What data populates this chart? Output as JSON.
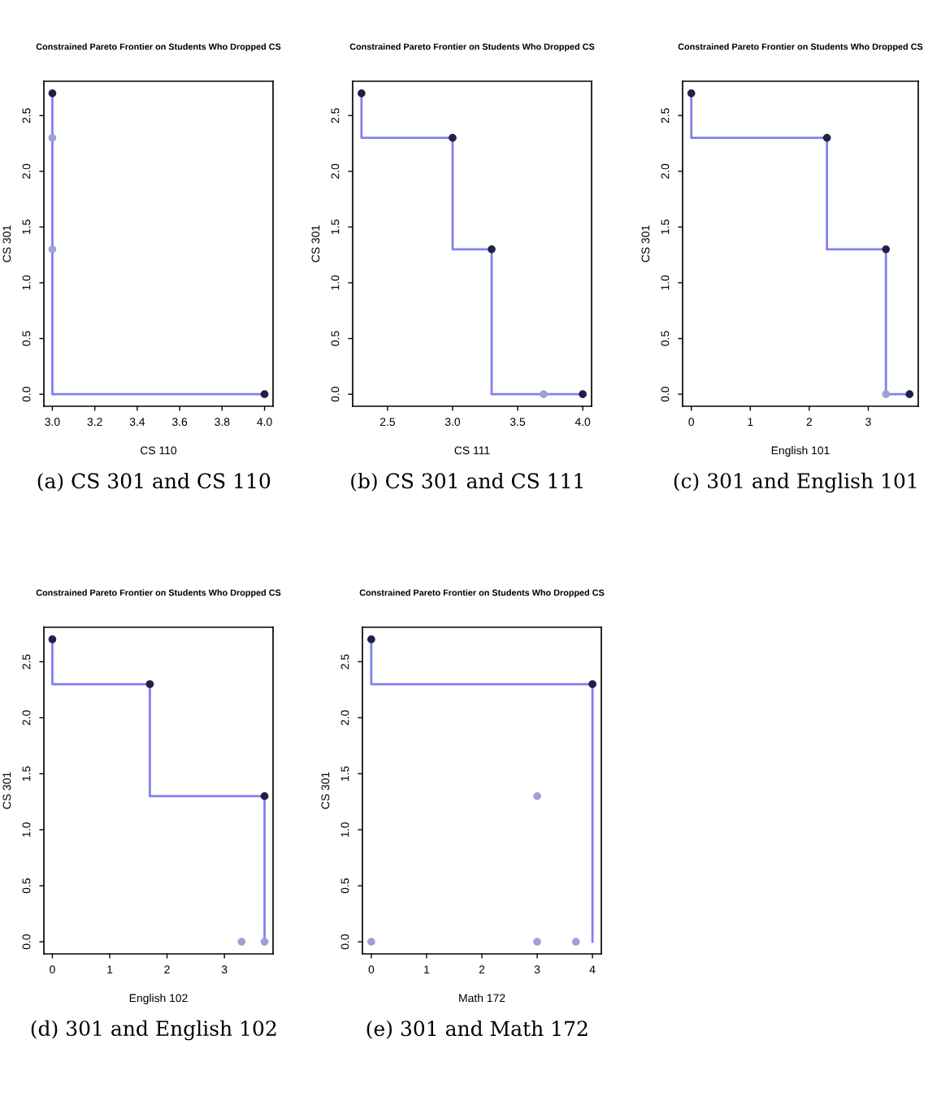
{
  "chart_data": [
    {
      "type": "step",
      "title": "Constrained Pareto Frontier on Students Who Dropped CS",
      "xlabel": "CS 110",
      "ylabel": "CS 301",
      "annotations": [
        "(a) CS 301 and CS 110"
      ],
      "xlim": [
        2.96,
        4.04
      ],
      "xticks": [
        {
          "value": 3.0,
          "label": "3.0"
        },
        {
          "value": 3.2,
          "label": "3.2"
        },
        {
          "value": 3.4,
          "label": "3.4"
        },
        {
          "value": 3.6,
          "label": "3.6"
        },
        {
          "value": 3.8,
          "label": "3.8"
        },
        {
          "value": 4.0,
          "label": "4.0"
        }
      ],
      "ylim": [
        -0.108,
        2.808
      ],
      "yticks": [
        {
          "value": 0,
          "label": "0.0"
        },
        {
          "value": 0.5,
          "label": "0.5"
        },
        {
          "value": 1,
          "label": "1.0"
        },
        {
          "value": 1.5,
          "label": "1.5"
        },
        {
          "value": 2,
          "label": "2.0"
        },
        {
          "value": 2.5,
          "label": "2.5"
        }
      ],
      "grid": false,
      "series": [
        {
          "color": "#8080f0",
          "marker": "none",
          "x": [
            3.0,
            4.0
          ],
          "values": [
            2.7,
            0.0
          ]
        },
        {
          "type": "scatter",
          "color": "#20204a",
          "marker": "circle",
          "x": [
            3.0,
            4.0
          ],
          "values": [
            2.7,
            0.0
          ]
        },
        {
          "type": "scatter",
          "color": "#a0a0d8",
          "marker": "circle",
          "x": [
            3.0,
            3.0
          ],
          "values": [
            2.3,
            1.3
          ]
        }
      ]
    },
    {
      "type": "step",
      "title": "Constrained Pareto Frontier on Students Who Dropped CS",
      "xlabel": "CS 111",
      "ylabel": "CS 301",
      "annotations": [
        "(b) CS 301 and CS 111"
      ],
      "xlim": [
        2.232,
        4.068
      ],
      "xticks": [
        {
          "value": 2.5,
          "label": "2.5"
        },
        {
          "value": 3.0,
          "label": "3.0"
        },
        {
          "value": 3.5,
          "label": "3.5"
        },
        {
          "value": 4.0,
          "label": "4.0"
        }
      ],
      "ylim": [
        -0.108,
        2.808
      ],
      "yticks": [
        {
          "value": 0,
          "label": "0.0"
        },
        {
          "value": 0.5,
          "label": "0.5"
        },
        {
          "value": 1,
          "label": "1.0"
        },
        {
          "value": 1.5,
          "label": "1.5"
        },
        {
          "value": 2,
          "label": "2.0"
        },
        {
          "value": 2.5,
          "label": "2.5"
        }
      ],
      "grid": false,
      "series": [
        {
          "color": "#8080f0",
          "marker": "none",
          "x": [
            2.3,
            3.0,
            3.3,
            4.0
          ],
          "values": [
            2.7,
            2.3,
            1.3,
            0.0
          ]
        },
        {
          "type": "scatter",
          "color": "#20204a",
          "marker": "circle",
          "x": [
            2.3,
            3.0,
            3.3,
            4.0
          ],
          "values": [
            2.7,
            2.3,
            1.3,
            0.0
          ]
        },
        {
          "type": "scatter",
          "color": "#a0a0d8",
          "marker": "circle",
          "x": [
            3.7
          ],
          "values": [
            0.0
          ]
        }
      ]
    },
    {
      "type": "step",
      "title": "Constrained Pareto Frontier on Students Who Dropped CS",
      "xlabel": "English 101",
      "ylabel": "CS 301",
      "annotations": [
        "(c) 301 and English 101"
      ],
      "xlim": [
        -0.148,
        3.848
      ],
      "xticks": [
        0,
        1,
        2,
        3
      ],
      "ylim": [
        -0.108,
        2.808
      ],
      "yticks": [
        {
          "value": 0,
          "label": "0.0"
        },
        {
          "value": 0.5,
          "label": "0.5"
        },
        {
          "value": 1,
          "label": "1.0"
        },
        {
          "value": 1.5,
          "label": "1.5"
        },
        {
          "value": 2,
          "label": "2.0"
        },
        {
          "value": 2.5,
          "label": "2.5"
        }
      ],
      "grid": false,
      "series": [
        {
          "color": "#8080f0",
          "marker": "none",
          "x": [
            0,
            2.3,
            3.3,
            3.7
          ],
          "values": [
            2.7,
            2.3,
            1.3,
            0.0
          ]
        },
        {
          "type": "scatter",
          "color": "#20204a",
          "marker": "circle",
          "x": [
            0,
            2.3,
            3.3,
            3.7
          ],
          "values": [
            2.7,
            2.3,
            1.3,
            0.0
          ]
        },
        {
          "type": "scatter",
          "color": "#a0a0d8",
          "marker": "circle",
          "x": [
            3.3
          ],
          "values": [
            0.0
          ]
        }
      ]
    },
    {
      "type": "step",
      "title": "Constrained Pareto Frontier on Students Who Dropped CS",
      "xlabel": "English 102",
      "ylabel": "CS 301",
      "annotations": [
        "(d) 301 and English 102"
      ],
      "xlim": [
        -0.148,
        3.848
      ],
      "xticks": [
        0,
        1,
        2,
        3
      ],
      "ylim": [
        -0.108,
        2.808
      ],
      "yticks": [
        {
          "value": 0,
          "label": "0.0"
        },
        {
          "value": 0.5,
          "label": "0.5"
        },
        {
          "value": 1,
          "label": "1.0"
        },
        {
          "value": 1.5,
          "label": "1.5"
        },
        {
          "value": 2,
          "label": "2.0"
        },
        {
          "value": 2.5,
          "label": "2.5"
        }
      ],
      "grid": false,
      "series": [
        {
          "color": "#8080f0",
          "marker": "none",
          "x": [
            0,
            1.7,
            3.7,
            3.7
          ],
          "values": [
            2.7,
            2.3,
            1.3,
            0.0
          ]
        },
        {
          "type": "scatter",
          "color": "#20204a",
          "marker": "circle",
          "x": [
            0,
            1.7,
            3.7
          ],
          "values": [
            2.7,
            2.3,
            1.3
          ]
        },
        {
          "type": "scatter",
          "color": "#a0a0d8",
          "marker": "circle",
          "x": [
            3.3,
            3.7
          ],
          "values": [
            0.0,
            0.0
          ]
        }
      ]
    },
    {
      "type": "step",
      "title": "Constrained Pareto Frontier on Students Who Dropped CS",
      "xlabel": "Math 172",
      "ylabel": "CS 301",
      "annotations": [
        "(e) 301 and Math 172"
      ],
      "xlim": [
        -0.16,
        4.16
      ],
      "xticks": [
        0,
        1,
        2,
        3,
        4
      ],
      "ylim": [
        -0.108,
        2.808
      ],
      "yticks": [
        {
          "value": 0,
          "label": "0.0"
        },
        {
          "value": 0.5,
          "label": "0.5"
        },
        {
          "value": 1,
          "label": "1.0"
        },
        {
          "value": 1.5,
          "label": "1.5"
        },
        {
          "value": 2,
          "label": "2.0"
        },
        {
          "value": 2.5,
          "label": "2.5"
        }
      ],
      "grid": false,
      "series": [
        {
          "color": "#8080f0",
          "marker": "none",
          "x": [
            0,
            4,
            4
          ],
          "values": [
            2.7,
            2.3,
            0.0
          ]
        },
        {
          "type": "scatter",
          "color": "#20204a",
          "marker": "circle",
          "x": [
            0,
            4
          ],
          "values": [
            2.7,
            2.3
          ]
        },
        {
          "type": "scatter",
          "color": "#a0a0d8",
          "marker": "circle",
          "x": [
            0,
            3,
            3,
            3.7
          ],
          "values": [
            0.0,
            1.3,
            0.0,
            0.0
          ]
        }
      ]
    }
  ]
}
